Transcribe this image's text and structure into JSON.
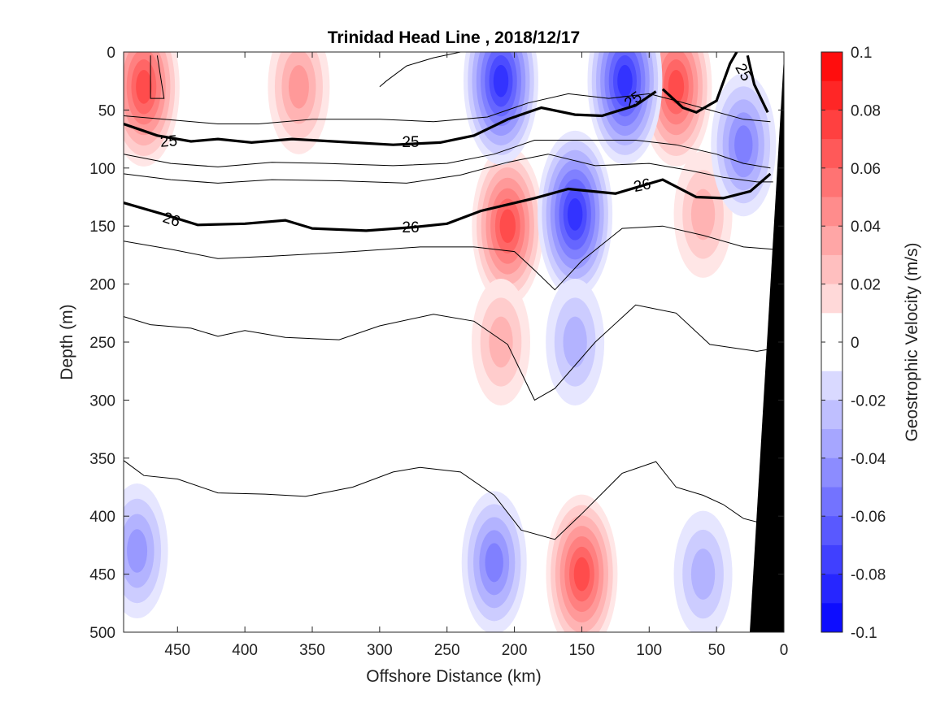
{
  "chart_data": {
    "type": "heatmap",
    "title": "Trinidad Head Line , 2018/12/17",
    "xlabel": "Offshore Distance (km)",
    "ylabel": "Depth (m)",
    "colorbar_label": "Geostrophic Velocity (m/s)",
    "xlim": [
      490,
      0
    ],
    "ylim": [
      0,
      500
    ],
    "x_ticks": [
      450,
      400,
      350,
      300,
      250,
      200,
      150,
      100,
      50,
      0
    ],
    "y_ticks": [
      0,
      50,
      100,
      150,
      200,
      250,
      300,
      350,
      400,
      450,
      500
    ],
    "colorbar_range": [
      -0.1,
      0.1
    ],
    "colorbar_ticks": [
      "0.1",
      "0.08",
      "0.06",
      "0.04",
      "0.02",
      "0",
      "-0.02",
      "-0.04",
      "-0.06",
      "-0.08",
      "-0.1"
    ],
    "colormap": {
      "positive": "#ff0000",
      "zero": "#ffffff",
      "negative": "#0000ff"
    },
    "velocity_cores": [
      {
        "x": 475,
        "depth": 30,
        "value": 0.07
      },
      {
        "x": 360,
        "depth": 30,
        "value": 0.04
      },
      {
        "x": 205,
        "depth": 150,
        "value": 0.065
      },
      {
        "x": 210,
        "depth": 250,
        "value": 0.03
      },
      {
        "x": 150,
        "depth": 450,
        "value": 0.065
      },
      {
        "x": 80,
        "depth": 30,
        "value": 0.07
      },
      {
        "x": 60,
        "depth": 140,
        "value": 0.03
      },
      {
        "x": 210,
        "depth": 25,
        "value": -0.08
      },
      {
        "x": 118,
        "depth": 25,
        "value": -0.08
      },
      {
        "x": 155,
        "depth": 140,
        "value": -0.08
      },
      {
        "x": 155,
        "depth": 250,
        "value": -0.03
      },
      {
        "x": 215,
        "depth": 440,
        "value": -0.05
      },
      {
        "x": 480,
        "depth": 430,
        "value": -0.04
      },
      {
        "x": 30,
        "depth": 80,
        "value": -0.05
      },
      {
        "x": 60,
        "depth": 450,
        "value": -0.03
      }
    ],
    "isopycnal_labels": [
      "25",
      "25",
      "25",
      "25",
      "26",
      "26",
      "26"
    ],
    "isopycnal_25": [
      [
        490,
        62
      ],
      [
        465,
        72
      ],
      [
        440,
        77
      ],
      [
        420,
        75
      ],
      [
        395,
        78
      ],
      [
        365,
        75
      ],
      [
        320,
        78
      ],
      [
        290,
        80
      ],
      [
        255,
        78
      ],
      [
        230,
        72
      ],
      [
        205,
        58
      ],
      [
        180,
        48
      ],
      [
        155,
        54
      ],
      [
        135,
        55
      ],
      [
        110,
        46
      ],
      [
        95,
        34
      ]
    ],
    "isopycnal_25_nearshore": [
      [
        90,
        32
      ],
      [
        75,
        48
      ],
      [
        65,
        52
      ],
      [
        50,
        42
      ],
      [
        40,
        10
      ],
      [
        35,
        0
      ]
    ],
    "isopycnal_25_edge": [
      [
        27,
        3
      ],
      [
        22,
        28
      ],
      [
        12,
        52
      ]
    ],
    "isopycnal_26": [
      [
        490,
        130
      ],
      [
        460,
        140
      ],
      [
        435,
        149
      ],
      [
        400,
        148
      ],
      [
        370,
        145
      ],
      [
        350,
        152
      ],
      [
        310,
        154
      ],
      [
        275,
        151
      ],
      [
        250,
        148
      ],
      [
        225,
        137
      ],
      [
        185,
        126
      ],
      [
        160,
        118
      ],
      [
        125,
        122
      ],
      [
        90,
        110
      ],
      [
        65,
        125
      ],
      [
        45,
        126
      ],
      [
        25,
        120
      ],
      [
        10,
        105
      ]
    ],
    "isopycnal_thin": [
      [
        [
          490,
          55
        ],
        [
          460,
          58
        ],
        [
          420,
          62
        ],
        [
          390,
          62
        ],
        [
          350,
          58
        ],
        [
          300,
          58
        ],
        [
          260,
          60
        ],
        [
          220,
          56
        ],
        [
          190,
          44
        ],
        [
          160,
          36
        ],
        [
          130,
          40
        ],
        [
          100,
          36
        ],
        [
          80,
          42
        ],
        [
          55,
          50
        ],
        [
          30,
          58
        ],
        [
          10,
          60
        ]
      ],
      [
        [
          490,
          88
        ],
        [
          455,
          96
        ],
        [
          420,
          99
        ],
        [
          380,
          95
        ],
        [
          340,
          96
        ],
        [
          290,
          98
        ],
        [
          250,
          96
        ],
        [
          215,
          88
        ],
        [
          185,
          76
        ],
        [
          150,
          76
        ],
        [
          110,
          76
        ],
        [
          80,
          80
        ],
        [
          50,
          88
        ],
        [
          30,
          96
        ],
        [
          10,
          100
        ]
      ],
      [
        [
          490,
          105
        ],
        [
          455,
          110
        ],
        [
          420,
          113
        ],
        [
          380,
          110
        ],
        [
          330,
          111
        ],
        [
          280,
          113
        ],
        [
          240,
          106
        ],
        [
          205,
          95
        ],
        [
          175,
          88
        ],
        [
          140,
          98
        ],
        [
          100,
          96
        ],
        [
          70,
          102
        ],
        [
          45,
          108
        ],
        [
          20,
          112
        ],
        [
          8,
          112
        ]
      ],
      [
        [
          490,
          163
        ],
        [
          455,
          170
        ],
        [
          420,
          178
        ],
        [
          380,
          176
        ],
        [
          320,
          172
        ],
        [
          270,
          168
        ],
        [
          230,
          168
        ],
        [
          200,
          172
        ],
        [
          185,
          188
        ],
        [
          170,
          205
        ],
        [
          150,
          180
        ],
        [
          120,
          152
        ],
        [
          90,
          150
        ],
        [
          60,
          158
        ],
        [
          30,
          168
        ],
        [
          8,
          170
        ]
      ],
      [
        [
          490,
          228
        ],
        [
          470,
          235
        ],
        [
          440,
          238
        ],
        [
          420,
          245
        ],
        [
          400,
          240
        ],
        [
          370,
          246
        ],
        [
          330,
          248
        ],
        [
          300,
          236
        ],
        [
          260,
          226
        ],
        [
          230,
          232
        ],
        [
          205,
          252
        ],
        [
          185,
          300
        ],
        [
          170,
          290
        ],
        [
          140,
          250
        ],
        [
          110,
          218
        ],
        [
          80,
          225
        ],
        [
          55,
          252
        ],
        [
          20,
          258
        ],
        [
          5,
          255
        ]
      ],
      [
        [
          490,
          352
        ],
        [
          475,
          365
        ],
        [
          450,
          368
        ],
        [
          420,
          380
        ],
        [
          385,
          381
        ],
        [
          355,
          383
        ],
        [
          320,
          375
        ],
        [
          290,
          362
        ],
        [
          270,
          358
        ],
        [
          240,
          362
        ],
        [
          215,
          382
        ],
        [
          195,
          412
        ],
        [
          170,
          420
        ],
        [
          150,
          398
        ],
        [
          120,
          363
        ],
        [
          95,
          353
        ],
        [
          80,
          375
        ],
        [
          60,
          382
        ],
        [
          45,
          390
        ],
        [
          30,
          402
        ],
        [
          10,
          408
        ]
      ],
      [
        [
          470,
          3
        ],
        [
          470,
          40
        ],
        [
          460,
          40
        ],
        [
          465,
          3
        ]
      ],
      [
        [
          300,
          30
        ],
        [
          295,
          25
        ],
        [
          280,
          12
        ],
        [
          260,
          5
        ],
        [
          240,
          0
        ]
      ]
    ]
  }
}
